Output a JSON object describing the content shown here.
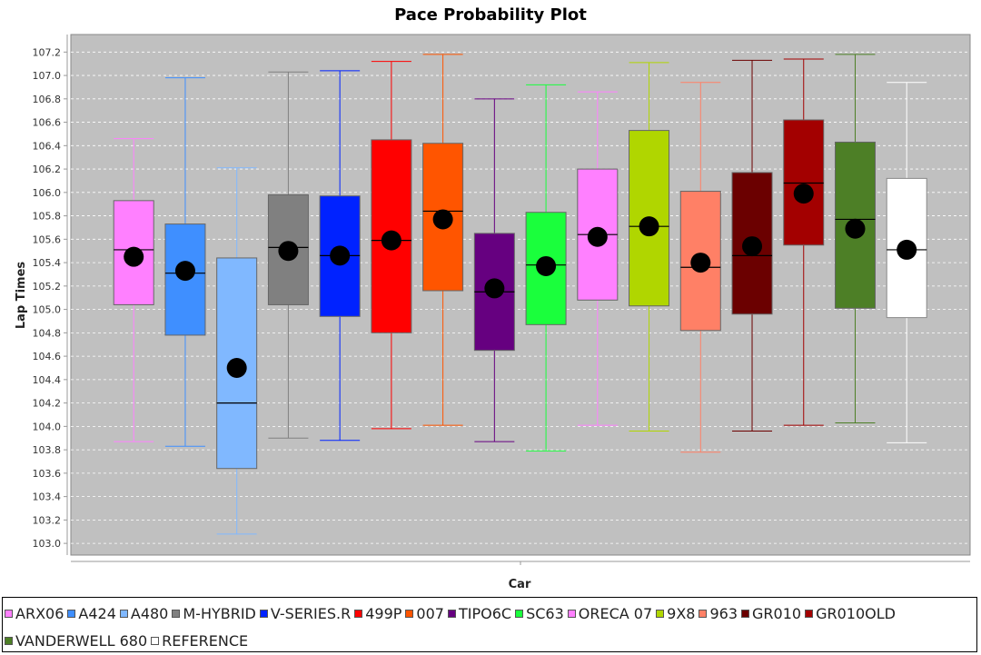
{
  "chart_data": {
    "type": "boxplot",
    "title": "Pace Probability Plot",
    "xlabel": "Car",
    "ylabel": "Lap Times",
    "ylim": [
      102.9,
      107.35
    ],
    "yticks": [
      103.0,
      103.2,
      103.4,
      103.6,
      103.8,
      104.0,
      104.2,
      104.4,
      104.6,
      104.8,
      105.0,
      105.2,
      105.4,
      105.6,
      105.8,
      106.0,
      106.2,
      106.4,
      106.6,
      106.8,
      107.0,
      107.2
    ],
    "grid": true,
    "legend_position": "bottom",
    "series": [
      {
        "name": "ARX06",
        "color": "#ff80ff",
        "min": 103.87,
        "q1": 105.04,
        "median": 105.51,
        "q3": 105.93,
        "max": 106.46,
        "mean": 105.45
      },
      {
        "name": "A424",
        "color": "#3f8fff",
        "min": 103.83,
        "q1": 104.78,
        "median": 105.31,
        "q3": 105.73,
        "max": 106.98,
        "mean": 105.33
      },
      {
        "name": "A480",
        "color": "#80b8ff",
        "min": 103.08,
        "q1": 103.64,
        "median": 104.2,
        "q3": 105.44,
        "max": 106.21,
        "mean": 104.5
      },
      {
        "name": "M-HYBRID",
        "color": "#808080",
        "min": 103.9,
        "q1": 105.04,
        "median": 105.53,
        "q3": 105.98,
        "max": 107.03,
        "mean": 105.5
      },
      {
        "name": "V-SERIES.R",
        "color": "#0022ff",
        "min": 103.88,
        "q1": 104.94,
        "median": 105.46,
        "q3": 105.97,
        "max": 107.04,
        "mean": 105.46
      },
      {
        "name": "499P",
        "color": "#ff0000",
        "min": 103.98,
        "q1": 104.8,
        "median": 105.59,
        "q3": 106.45,
        "max": 107.12,
        "mean": 105.59
      },
      {
        "name": "007",
        "color": "#ff5500",
        "min": 104.01,
        "q1": 105.16,
        "median": 105.84,
        "q3": 106.42,
        "max": 107.18,
        "mean": 105.77
      },
      {
        "name": "TIPO6C",
        "color": "#660080",
        "min": 103.87,
        "q1": 104.65,
        "median": 105.15,
        "q3": 105.65,
        "max": 106.8,
        "mean": 105.18
      },
      {
        "name": "SC63",
        "color": "#1aff3c",
        "min": 103.79,
        "q1": 104.87,
        "median": 105.38,
        "q3": 105.83,
        "max": 106.92,
        "mean": 105.37
      },
      {
        "name": "ORECA 07",
        "color": "#ff80ff",
        "min": 104.01,
        "q1": 105.08,
        "median": 105.64,
        "q3": 106.2,
        "max": 106.86,
        "mean": 105.62
      },
      {
        "name": "9X8",
        "color": "#b0d600",
        "min": 103.96,
        "q1": 105.03,
        "median": 105.71,
        "q3": 106.53,
        "max": 107.11,
        "mean": 105.71
      },
      {
        "name": "963",
        "color": "#ff8066",
        "min": 103.78,
        "q1": 104.82,
        "median": 105.36,
        "q3": 106.01,
        "max": 106.94,
        "mean": 105.4
      },
      {
        "name": "GR010",
        "color": "#6b0000",
        "min": 103.96,
        "q1": 104.96,
        "median": 105.46,
        "q3": 106.17,
        "max": 107.13,
        "mean": 105.54
      },
      {
        "name": "GR010OLD",
        "color": "#a30000",
        "min": 104.01,
        "q1": 105.55,
        "median": 106.08,
        "q3": 106.62,
        "max": 107.14,
        "mean": 105.99
      },
      {
        "name": "VANDERWELL 680",
        "color": "#4d7f26",
        "min": 104.03,
        "q1": 105.01,
        "median": 105.77,
        "q3": 106.43,
        "max": 107.18,
        "mean": 105.69
      },
      {
        "name": "REFERENCE",
        "color": "#ffffff",
        "min": 103.86,
        "q1": 104.93,
        "median": 105.51,
        "q3": 106.12,
        "max": 106.94,
        "mean": 105.51
      }
    ]
  }
}
